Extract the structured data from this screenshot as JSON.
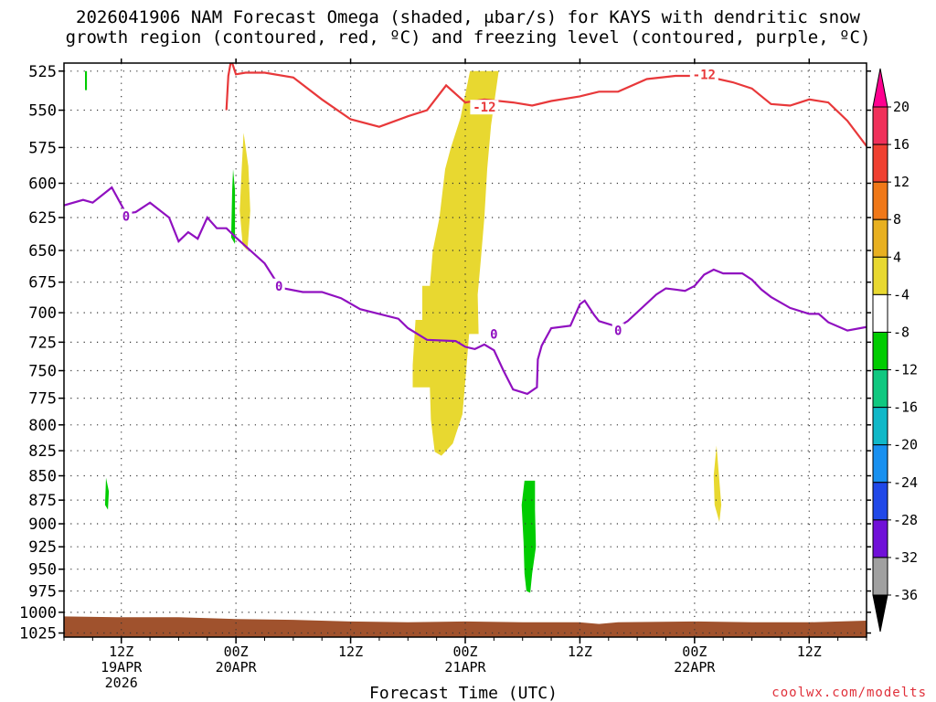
{
  "title_line1": "2026041906 NAM Forecast Omega (shaded, μbar/s) for KAYS with dendritic snow",
  "title_line2": "growth region (contoured, red, ºC) and freezing level (contoured, purple, ºC)",
  "watermark": "coolwx.com/modelts",
  "chart_data": {
    "type": "time-height",
    "title": "2026041906 NAM Forecast Omega (shaded, μbar/s) for KAYS with dendritic snow growth region (contoured, red, ºC) and freezing level (contoured, purple, ºC)",
    "xlabel": "Forecast Time (UTC)",
    "ylabel": "",
    "x_unit": "hours since 2026-04-19 06Z",
    "xlim": [
      0,
      84
    ],
    "ylim_hPa": [
      525,
      1025
    ],
    "y_ticks": [
      525,
      550,
      575,
      600,
      625,
      650,
      675,
      700,
      725,
      750,
      775,
      800,
      825,
      850,
      875,
      900,
      925,
      950,
      975,
      1000,
      1025
    ],
    "x_ticks": [
      {
        "x": 6,
        "label": "12Z",
        "sub1": "19APR",
        "sub2": "2026"
      },
      {
        "x": 18,
        "label": "00Z",
        "sub1": "20APR",
        "sub2": ""
      },
      {
        "x": 30,
        "label": "12Z",
        "sub1": "",
        "sub2": ""
      },
      {
        "x": 42,
        "label": "00Z",
        "sub1": "21APR",
        "sub2": ""
      },
      {
        "x": 54,
        "label": "12Z",
        "sub1": "",
        "sub2": ""
      },
      {
        "x": 66,
        "label": "00Z",
        "sub1": "22APR",
        "sub2": ""
      },
      {
        "x": 78,
        "label": "12Z",
        "sub1": "",
        "sub2": ""
      }
    ],
    "grid": true,
    "colorbar": {
      "labels": [
        "20",
        "16",
        "12",
        "8",
        "4",
        "-4",
        "-8",
        "-12",
        "-16",
        "-20",
        "-24",
        "-28",
        "-32",
        "-36"
      ],
      "colors": [
        "#f0305a",
        "#f04030",
        "#f07818",
        "#e8b020",
        "#e8d830",
        "#ffffff",
        "#00cc00",
        "#10c880",
        "#10b8c8",
        "#1890f0",
        "#2048e8",
        "#7010d8",
        "#a010c8",
        "#a0a0a0"
      ],
      "top_arrow_color": "#ff0090",
      "bottom_arrow_color": "#000000"
    },
    "freezing_level": {
      "label": "0",
      "color": "#9010c0",
      "points": [
        [
          0,
          616
        ],
        [
          2,
          612
        ],
        [
          3,
          614
        ],
        [
          5,
          603
        ],
        [
          6.5,
          622
        ],
        [
          7.5,
          621
        ],
        [
          9,
          614
        ],
        [
          11,
          625
        ],
        [
          12,
          643
        ],
        [
          13,
          636
        ],
        [
          14,
          641
        ],
        [
          15,
          625
        ],
        [
          16,
          633
        ],
        [
          17,
          633
        ],
        [
          18,
          640
        ],
        [
          21,
          660
        ],
        [
          22,
          672
        ],
        [
          23,
          680
        ],
        [
          25,
          683
        ],
        [
          27,
          683
        ],
        [
          29,
          688
        ],
        [
          31,
          697
        ],
        [
          35,
          705
        ],
        [
          36,
          713
        ],
        [
          38,
          723
        ],
        [
          41,
          724
        ],
        [
          42,
          729
        ],
        [
          43,
          731
        ],
        [
          44,
          727
        ],
        [
          45,
          732
        ],
        [
          46,
          750
        ],
        [
          47,
          767
        ],
        [
          48.5,
          771
        ],
        [
          49.5,
          765
        ],
        [
          49.6,
          740
        ],
        [
          50,
          728
        ],
        [
          51,
          713
        ],
        [
          53,
          711
        ],
        [
          54,
          693
        ],
        [
          54.5,
          690
        ],
        [
          55.5,
          702
        ],
        [
          56,
          707
        ],
        [
          58,
          712
        ],
        [
          59,
          707
        ],
        [
          62,
          685
        ],
        [
          63,
          680
        ],
        [
          64,
          681
        ],
        [
          65,
          682
        ],
        [
          66,
          678
        ],
        [
          67,
          669
        ],
        [
          68,
          665
        ],
        [
          69,
          668
        ],
        [
          71,
          668
        ],
        [
          72,
          673
        ],
        [
          73,
          681
        ],
        [
          74,
          687
        ],
        [
          76,
          696
        ],
        [
          78,
          701
        ],
        [
          79,
          701
        ],
        [
          80,
          708
        ],
        [
          82,
          715
        ],
        [
          84,
          712
        ]
      ],
      "labels_at": [
        [
          6.5,
          624
        ],
        [
          22.5,
          678
        ],
        [
          45,
          718
        ],
        [
          58,
          715
        ]
      ]
    },
    "dgz_minus12": {
      "label": "-12",
      "color": "#e8383a",
      "points": [
        [
          17,
          550
        ],
        [
          17.2,
          528
        ],
        [
          17.5,
          518
        ],
        [
          18,
          527
        ],
        [
          19,
          526
        ],
        [
          21,
          526
        ],
        [
          24,
          529
        ],
        [
          27,
          543
        ],
        [
          30,
          556
        ],
        [
          33,
          561
        ],
        [
          36,
          554
        ],
        [
          38,
          550
        ],
        [
          40,
          534
        ],
        [
          42,
          545
        ],
        [
          44,
          543
        ],
        [
          47,
          545
        ],
        [
          49,
          547
        ],
        [
          51,
          544
        ],
        [
          54,
          541
        ],
        [
          56,
          538
        ],
        [
          58,
          538
        ],
        [
          61,
          530
        ],
        [
          64,
          528
        ],
        [
          67,
          528
        ],
        [
          70,
          532
        ],
        [
          72,
          536
        ],
        [
          74,
          546
        ],
        [
          76,
          547
        ],
        [
          78,
          543
        ],
        [
          80,
          545
        ],
        [
          82,
          557
        ],
        [
          84,
          574
        ]
      ],
      "labels_at": [
        [
          44,
          548
        ],
        [
          67,
          527
        ]
      ]
    },
    "omega_regions": [
      {
        "value": 4,
        "color": "#e8d830",
        "points": [
          [
            42.5,
            525
          ],
          [
            45.5,
            525
          ],
          [
            44.7,
            560
          ],
          [
            44.3,
            590
          ],
          [
            44,
            625
          ],
          [
            43.6,
            660
          ],
          [
            43.3,
            685
          ],
          [
            43.4,
            718
          ],
          [
            42.4,
            718
          ],
          [
            42,
            760
          ],
          [
            41.7,
            790
          ],
          [
            40.7,
            818
          ],
          [
            39.5,
            830
          ],
          [
            38.8,
            826
          ],
          [
            38.4,
            795
          ],
          [
            38.3,
            765
          ],
          [
            36.5,
            765
          ],
          [
            36.5,
            745
          ],
          [
            36.8,
            706
          ],
          [
            37.5,
            706
          ],
          [
            37.5,
            678
          ],
          [
            38.3,
            678
          ],
          [
            38.6,
            650
          ],
          [
            39.3,
            625
          ],
          [
            39.9,
            590
          ],
          [
            40.5,
            575
          ],
          [
            41.5,
            555
          ]
        ]
      },
      {
        "value": 4,
        "color": "#e8d830",
        "points": [
          [
            18.8,
            565
          ],
          [
            19.3,
            588
          ],
          [
            19.5,
            620
          ],
          [
            19.2,
            650
          ],
          [
            18.7,
            646
          ],
          [
            18.4,
            620
          ],
          [
            18.6,
            590
          ]
        ]
      },
      {
        "value": 4,
        "color": "#e8d830",
        "points": [
          [
            68.3,
            820
          ],
          [
            68.6,
            855
          ],
          [
            68.8,
            880
          ],
          [
            68.6,
            898
          ],
          [
            68.1,
            880
          ],
          [
            68.0,
            850
          ]
        ]
      },
      {
        "value": -8,
        "color": "#00cc00",
        "points": [
          [
            48.2,
            855
          ],
          [
            49.3,
            855
          ],
          [
            49.3,
            885
          ],
          [
            49.4,
            925
          ],
          [
            49.0,
            955
          ],
          [
            48.8,
            977
          ],
          [
            48.4,
            975
          ],
          [
            48.2,
            955
          ],
          [
            48.1,
            920
          ],
          [
            47.9,
            880
          ]
        ]
      },
      {
        "value": -8,
        "color": "#00cc00",
        "points": [
          [
            17.7,
            590
          ],
          [
            17.9,
            605
          ],
          [
            17.9,
            645
          ],
          [
            17.5,
            640
          ],
          [
            17.6,
            605
          ]
        ]
      },
      {
        "value": -8,
        "color": "#00cc00",
        "points": [
          [
            4.4,
            852
          ],
          [
            4.7,
            866
          ],
          [
            4.6,
            885
          ],
          [
            4.3,
            880
          ]
        ]
      },
      {
        "value": -8,
        "color": "#00cc00",
        "points": [
          [
            2.2,
            525
          ],
          [
            2.4,
            525
          ],
          [
            2.4,
            537
          ],
          [
            2.2,
            537
          ]
        ]
      }
    ],
    "terrain": {
      "color": "#a0522d",
      "points": [
        [
          0,
          1005
        ],
        [
          6,
          1006
        ],
        [
          12,
          1006
        ],
        [
          18,
          1008
        ],
        [
          24,
          1009
        ],
        [
          30,
          1011
        ],
        [
          36,
          1012
        ],
        [
          42,
          1011
        ],
        [
          48,
          1012
        ],
        [
          54,
          1012
        ],
        [
          56,
          1014
        ],
        [
          58,
          1012
        ],
        [
          66,
          1011
        ],
        [
          72,
          1012
        ],
        [
          78,
          1012
        ],
        [
          84,
          1010
        ]
      ]
    }
  }
}
